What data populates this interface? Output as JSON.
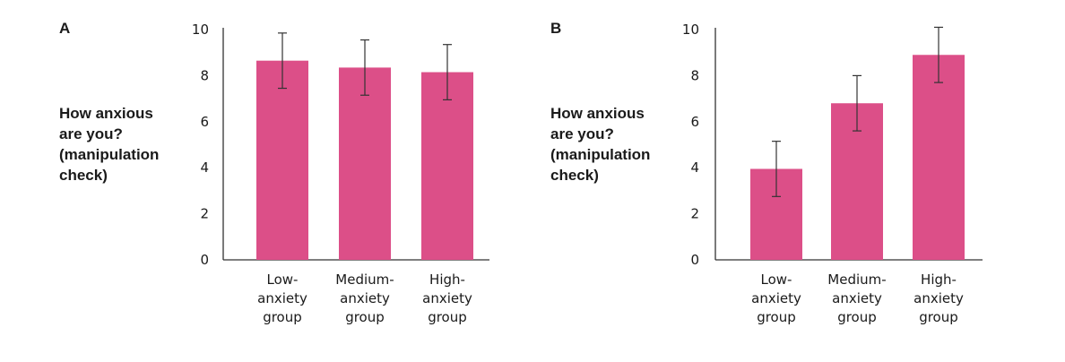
{
  "chart_data": [
    {
      "type": "bar",
      "panel_label": "A",
      "ylabel": [
        "How anxious",
        "are you?",
        "(manipulation",
        "check)"
      ],
      "categories": [
        [
          "Low-",
          "anxiety",
          "group"
        ],
        [
          "Medium-",
          "anxiety",
          "group"
        ],
        [
          "High-",
          "anxiety",
          "group"
        ]
      ],
      "values": [
        8.65,
        8.35,
        8.15
      ],
      "error": [
        1.2,
        1.2,
        1.2
      ],
      "ylim": [
        0,
        10
      ],
      "yticks": [
        0,
        2,
        4,
        6,
        8,
        10
      ],
      "bar_color": "#dc4f88",
      "grid": false
    },
    {
      "type": "bar",
      "panel_label": "B",
      "ylabel": [
        "How anxious",
        "are you?",
        "(manipulation",
        "check)"
      ],
      "categories": [
        [
          "Low-",
          "anxiety",
          "group"
        ],
        [
          "Medium-",
          "anxiety",
          "group"
        ],
        [
          "High-",
          "anxiety",
          "group"
        ]
      ],
      "values": [
        3.95,
        6.8,
        8.9
      ],
      "error": [
        1.2,
        1.2,
        1.2
      ],
      "ylim": [
        0,
        10
      ],
      "yticks": [
        0,
        2,
        4,
        6,
        8,
        10
      ],
      "bar_color": "#dc4f88",
      "grid": false
    }
  ]
}
